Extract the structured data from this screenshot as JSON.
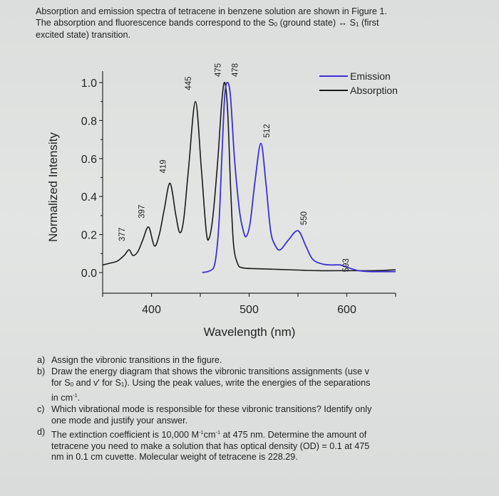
{
  "intro": {
    "line1": "Absorption and emission spectra of tetracene in benzene solution are shown in Figure 1.",
    "line2_pre": "The absorption and fluorescence bands correspond to the S",
    "line2_sub0": "0",
    "line2_mid": " (ground state) ↔ S",
    "line2_sub1": "1",
    "line2_post": " (first",
    "line3": "excited state) transition."
  },
  "chart_data": {
    "type": "line",
    "title": "",
    "xlabel": "Wavelength (nm)",
    "ylabel": "Normalized Intensity",
    "xlim": [
      350,
      650
    ],
    "ylim": [
      -0.1,
      1.05
    ],
    "x_ticks": [
      400,
      500,
      600
    ],
    "y_ticks": [
      "0.0",
      "0.2",
      "0.4",
      "0.6",
      "0.8",
      "1.0"
    ],
    "grid": false,
    "legend": {
      "position": "top-right",
      "entries": [
        "Emission",
        "Absorption"
      ]
    },
    "colors": {
      "emission": "#3a2fd6",
      "absorption": "#1a1a1a"
    },
    "series": [
      {
        "name": "Absorption",
        "peaks": [
          {
            "x": 377,
            "y": 0.12
          },
          {
            "x": 397,
            "y": 0.24
          },
          {
            "x": 419,
            "y": 0.47
          },
          {
            "x": 445,
            "y": 0.9
          },
          {
            "x": 475,
            "y": 1.0
          }
        ],
        "points": [
          [
            350,
            0.04
          ],
          [
            358,
            0.05
          ],
          [
            365,
            0.06
          ],
          [
            372,
            0.09
          ],
          [
            377,
            0.12
          ],
          [
            381,
            0.09
          ],
          [
            386,
            0.11
          ],
          [
            391,
            0.17
          ],
          [
            397,
            0.24
          ],
          [
            403,
            0.14
          ],
          [
            408,
            0.2
          ],
          [
            413,
            0.33
          ],
          [
            419,
            0.47
          ],
          [
            425,
            0.3
          ],
          [
            429,
            0.21
          ],
          [
            433,
            0.28
          ],
          [
            438,
            0.55
          ],
          [
            445,
            0.9
          ],
          [
            451,
            0.55
          ],
          [
            456,
            0.22
          ],
          [
            459,
            0.18
          ],
          [
            463,
            0.3
          ],
          [
            468,
            0.6
          ],
          [
            472,
            0.9
          ],
          [
            475,
            1.0
          ],
          [
            478,
            0.85
          ],
          [
            481,
            0.45
          ],
          [
            484,
            0.15
          ],
          [
            488,
            0.05
          ],
          [
            493,
            0.025
          ],
          [
            510,
            0.02
          ],
          [
            540,
            0.015
          ],
          [
            570,
            0.01
          ],
          [
            600,
            0.01
          ],
          [
            630,
            0.01
          ],
          [
            650,
            0.015
          ]
        ]
      },
      {
        "name": "Emission",
        "peaks": [
          {
            "x": 478,
            "y": 1.0
          },
          {
            "x": 512,
            "y": 0.68
          },
          {
            "x": 550,
            "y": 0.22
          },
          {
            "x": 593,
            "y": 0.04
          }
        ],
        "points": [
          [
            452,
            0.0
          ],
          [
            460,
            0.01
          ],
          [
            465,
            0.05
          ],
          [
            469,
            0.25
          ],
          [
            472,
            0.6
          ],
          [
            475,
            0.93
          ],
          [
            478,
            1.0
          ],
          [
            481,
            0.92
          ],
          [
            485,
            0.6
          ],
          [
            490,
            0.33
          ],
          [
            494,
            0.22
          ],
          [
            497,
            0.19
          ],
          [
            501,
            0.26
          ],
          [
            506,
            0.48
          ],
          [
            512,
            0.68
          ],
          [
            517,
            0.48
          ],
          [
            522,
            0.22
          ],
          [
            527,
            0.14
          ],
          [
            532,
            0.12
          ],
          [
            540,
            0.17
          ],
          [
            550,
            0.22
          ],
          [
            558,
            0.14
          ],
          [
            565,
            0.07
          ],
          [
            575,
            0.045
          ],
          [
            585,
            0.04
          ],
          [
            593,
            0.04
          ],
          [
            602,
            0.025
          ],
          [
            612,
            0.01
          ],
          [
            625,
            0.005
          ],
          [
            640,
            0.005
          ],
          [
            650,
            0.005
          ]
        ]
      }
    ],
    "annotations": [
      "377",
      "397",
      "419",
      "445",
      "475",
      "478",
      "512",
      "550",
      "593"
    ]
  },
  "chart_labels": {
    "ylabel": "Normalized Intensity",
    "xlabel": "Wavelength (nm)",
    "legend_emission": "Emission",
    "legend_absorption": "Absorption"
  },
  "questions": {
    "a": {
      "label": "a)",
      "text": "Assign the vibronic transitions in the figure."
    },
    "b": {
      "label": "b)",
      "line1": "Draw the energy diagram that shows the vibronic transitions assignments (use v",
      "line2_pre": "for S",
      "sub0": "0",
      "line2_mid": " and v' for S",
      "sub1": "1",
      "line2_post": "). Using the peak values, write the energies of the separations",
      "line3_pre": "in cm",
      "line3_sup": "-1",
      "line3_post": "."
    },
    "c": {
      "label": "c)",
      "line1": "Which vibrational mode is responsible for these vibronic transitions? Identify only",
      "line2": "one mode and justify your answer."
    },
    "d": {
      "label": "d)",
      "line1_pre": "The extinction coefficient is 10,000 M",
      "sup1": "-1",
      "line1_mid": "cm",
      "sup2": "-1",
      "line1_post": " at 475 nm. Determine the amount of",
      "line2": "tetracene you need to make a solution that has optical density (OD) = 0.1 at 475",
      "line3": "nm in 0.1 cm cuvette. Molecular weight of tetracene is 228.29."
    }
  }
}
